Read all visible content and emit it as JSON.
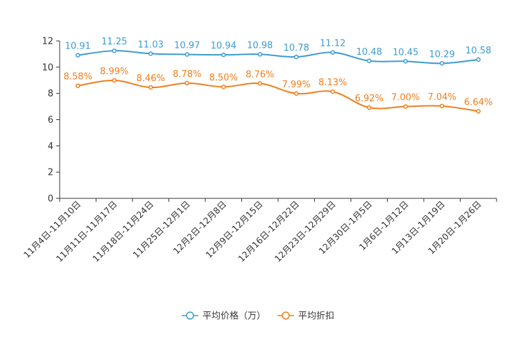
{
  "chart_data": {
    "type": "line",
    "categories": [
      "11月4日-11月10日",
      "11月11日-11月17日",
      "11月18日-11月24日",
      "11月25日-12月1日",
      "12月2日-12月8日",
      "12月9日-12月15日",
      "12月16日-12月22日",
      "12月23日-12月29日",
      "12月30日-1月5日",
      "1月6日-1月12日",
      "1月13日-1月19日",
      "1月20日-1月26日"
    ],
    "ylim": [
      0,
      12
    ],
    "yticks": [
      0,
      2,
      4,
      6,
      8,
      10,
      12
    ],
    "series": [
      {
        "name": "平均价格（万）",
        "color": "#3a9bd0",
        "values": [
          10.91,
          11.25,
          11.03,
          10.97,
          10.94,
          10.98,
          10.78,
          11.12,
          10.48,
          10.45,
          10.29,
          10.58
        ],
        "labels": [
          "10.91",
          "11.25",
          "11.03",
          "10.97",
          "10.94",
          "10.98",
          "10.78",
          "11.12",
          "10.48",
          "10.45",
          "10.29",
          "10.58"
        ]
      },
      {
        "name": "平均折扣",
        "color": "#f07d1a",
        "values": [
          8.58,
          8.99,
          8.46,
          8.78,
          8.5,
          8.76,
          7.99,
          8.13,
          6.92,
          7.0,
          7.04,
          6.64
        ],
        "labels": [
          "8.58%",
          "8.99%",
          "8.46%",
          "8.78%",
          "8.50%",
          "8.76%",
          "7.99%",
          "8.13%",
          "6.92%",
          "7.00%",
          "7.04%",
          "6.64%"
        ]
      }
    ]
  }
}
